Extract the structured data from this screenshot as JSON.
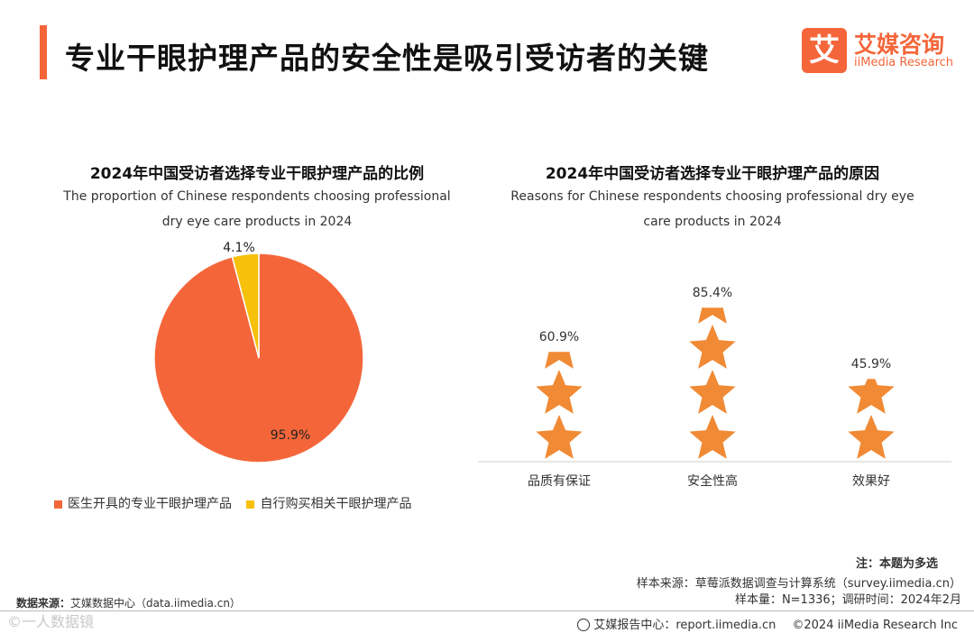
{
  "header": {
    "title": "专业干眼护理产品的安全性是吸引受访者的关键",
    "logo_mark": "艾",
    "logo_cn": "艾媒咨询",
    "logo_en": "iiMedia Research"
  },
  "left_chart": {
    "title_cn": "2024年中国受访者选择专业干眼护理产品的比例",
    "title_en_line1": "The proportion of Chinese respondents choosing professional",
    "title_en_line2": "dry eye care products in 2024"
  },
  "right_chart": {
    "title_cn": "2024年中国受访者选择专业干眼护理产品的原因",
    "title_en_line1": "Reasons for Chinese respondents choosing professional dry eye",
    "title_en_line2": "care products in 2024"
  },
  "chart_data": [
    {
      "type": "pie",
      "title": "2024年中国受访者选择专业干眼护理产品的比例",
      "categories": [
        "医生开具的专业干眼护理产品",
        "自行购买相关干眼护理产品"
      ],
      "values": [
        95.9,
        4.1
      ],
      "labels": [
        "95.9%",
        "4.1%"
      ],
      "colors": [
        "#f4663a",
        "#f7c00b"
      ],
      "legend": "bottom"
    },
    {
      "type": "bar",
      "title": "2024年中国受访者选择专业干眼护理产品的原因",
      "categories": [
        "品质有保证",
        "安全性高",
        "效果好"
      ],
      "values": [
        60.9,
        85.4,
        45.9
      ],
      "labels": [
        "60.9%",
        "85.4%",
        "45.9%"
      ],
      "color": "#f08a35",
      "ylim": [
        0,
        100
      ]
    }
  ],
  "legend": {
    "items": [
      {
        "label": "医生开具的专业干眼护理产品",
        "color": "#f4663a"
      },
      {
        "label": "自行购买相关干眼护理产品",
        "color": "#f7c00b"
      }
    ]
  },
  "notes": {
    "note": "注：本题为多选",
    "sample_source": "样本来源：草莓派数据调查与计算系统（survey.iimedia.cn）",
    "sample_size": "样本量：N=1336；调研时间：2024年2月",
    "data_source_label": "数据来源：",
    "data_source_value": "艾媒数据中心（data.iimedia.cn）",
    "watermark": "©一人数据镜"
  },
  "footer": {
    "report_center": "艾媒报告中心：report.iimedia.cn",
    "copyright": "©2024  iiMedia Research  Inc"
  }
}
